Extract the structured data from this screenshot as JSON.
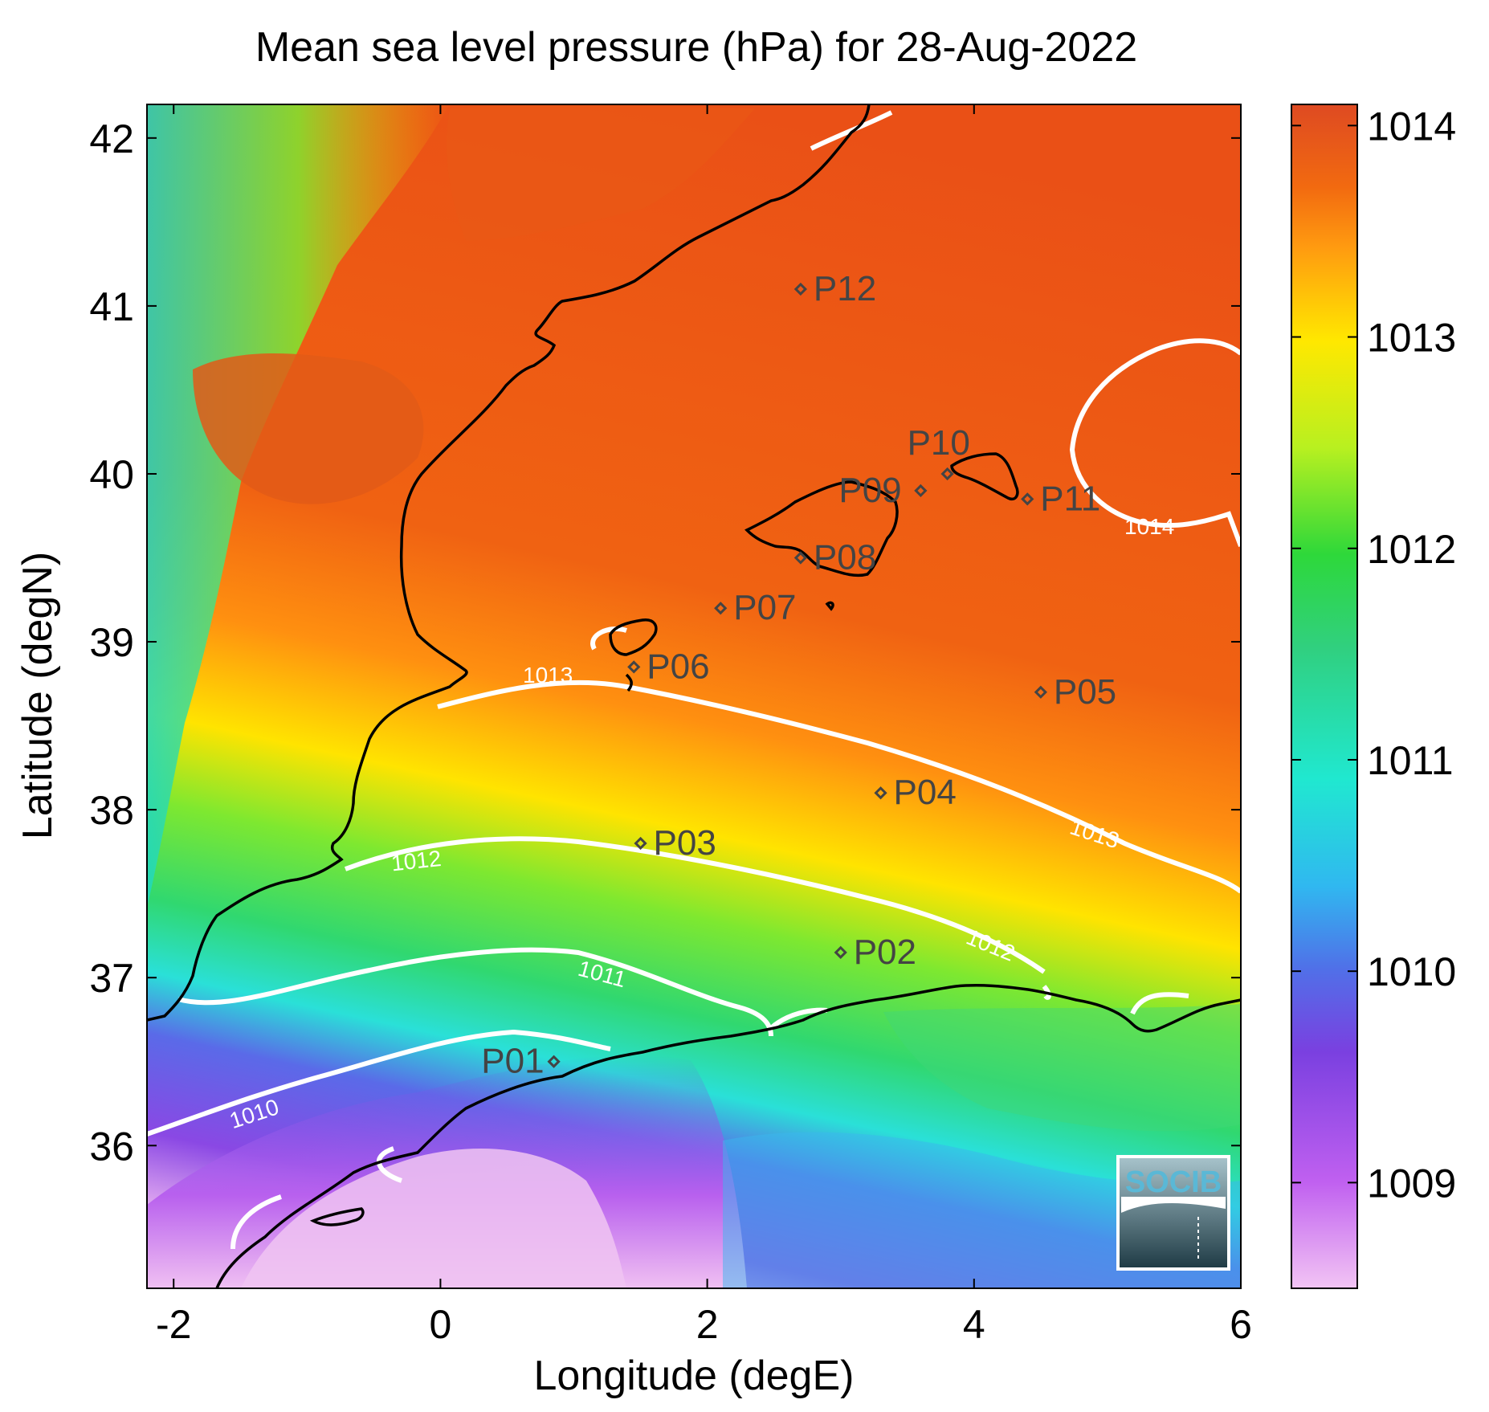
{
  "title": "Mean sea level pressure (hPa) for 28-Aug-2022",
  "chart_data": {
    "type": "heatmap",
    "xlabel": "Longitude (degE)",
    "ylabel": "Latitude (degN)",
    "xlim": [
      -2.2,
      6.0
    ],
    "ylim": [
      35.15,
      42.2
    ],
    "xticks": [
      {
        "value": -2,
        "label": "-2"
      },
      {
        "value": 0,
        "label": "0"
      },
      {
        "value": 2,
        "label": "2"
      },
      {
        "value": 4,
        "label": "4"
      },
      {
        "value": 6,
        "label": "6"
      }
    ],
    "yticks": [
      {
        "value": 36,
        "label": "36"
      },
      {
        "value": 37,
        "label": "37"
      },
      {
        "value": 38,
        "label": "38"
      },
      {
        "value": 39,
        "label": "39"
      },
      {
        "value": 40,
        "label": "40"
      },
      {
        "value": 41,
        "label": "41"
      },
      {
        "value": 42,
        "label": "42"
      }
    ],
    "colorbar": {
      "range": [
        1008.5,
        1014.1
      ],
      "ticks": [
        {
          "value": 1009,
          "label": "1009"
        },
        {
          "value": 1010,
          "label": "1010"
        },
        {
          "value": 1011,
          "label": "1011"
        },
        {
          "value": 1012,
          "label": "1012"
        },
        {
          "value": 1013,
          "label": "1013"
        },
        {
          "value": 1014,
          "label": "1014"
        }
      ],
      "stops": [
        {
          "value": 1008.5,
          "color": "#f2c4f4"
        },
        {
          "value": 1009.0,
          "color": "#c060f0"
        },
        {
          "value": 1009.6,
          "color": "#7a40e0"
        },
        {
          "value": 1010.0,
          "color": "#5070e8"
        },
        {
          "value": 1010.4,
          "color": "#30b8f0"
        },
        {
          "value": 1010.9,
          "color": "#20e8d0"
        },
        {
          "value": 1011.5,
          "color": "#30d080"
        },
        {
          "value": 1012.0,
          "color": "#2ed83a"
        },
        {
          "value": 1012.5,
          "color": "#b8f020"
        },
        {
          "value": 1013.0,
          "color": "#ffe800"
        },
        {
          "value": 1013.4,
          "color": "#ff9a10"
        },
        {
          "value": 1013.7,
          "color": "#f26a10"
        },
        {
          "value": 1014.1,
          "color": "#de4a22"
        }
      ]
    },
    "contour_levels": [
      {
        "label": "1010"
      },
      {
        "label": "1011"
      },
      {
        "label": "1012"
      },
      {
        "label": "1013"
      },
      {
        "label": "1014"
      }
    ],
    "points": [
      {
        "label": "P01",
        "lon": 0.85,
        "lat": 36.5
      },
      {
        "label": "P02",
        "lon": 3.0,
        "lat": 37.15
      },
      {
        "label": "P03",
        "lon": 1.5,
        "lat": 37.8
      },
      {
        "label": "P04",
        "lon": 3.3,
        "lat": 38.1
      },
      {
        "label": "P05",
        "lon": 4.5,
        "lat": 38.7
      },
      {
        "label": "P06",
        "lon": 1.45,
        "lat": 38.85
      },
      {
        "label": "P07",
        "lon": 2.1,
        "lat": 39.2
      },
      {
        "label": "P08",
        "lon": 2.7,
        "lat": 39.5
      },
      {
        "label": "P09",
        "lon": 3.6,
        "lat": 39.9
      },
      {
        "label": "P10",
        "lon": 3.8,
        "lat": 40.0
      },
      {
        "label": "P11",
        "lon": 4.4,
        "lat": 39.85
      },
      {
        "label": "P12",
        "lon": 2.7,
        "lat": 41.1
      }
    ]
  },
  "logo": {
    "text": "SOCIB",
    "color": "#5ab8d6"
  }
}
